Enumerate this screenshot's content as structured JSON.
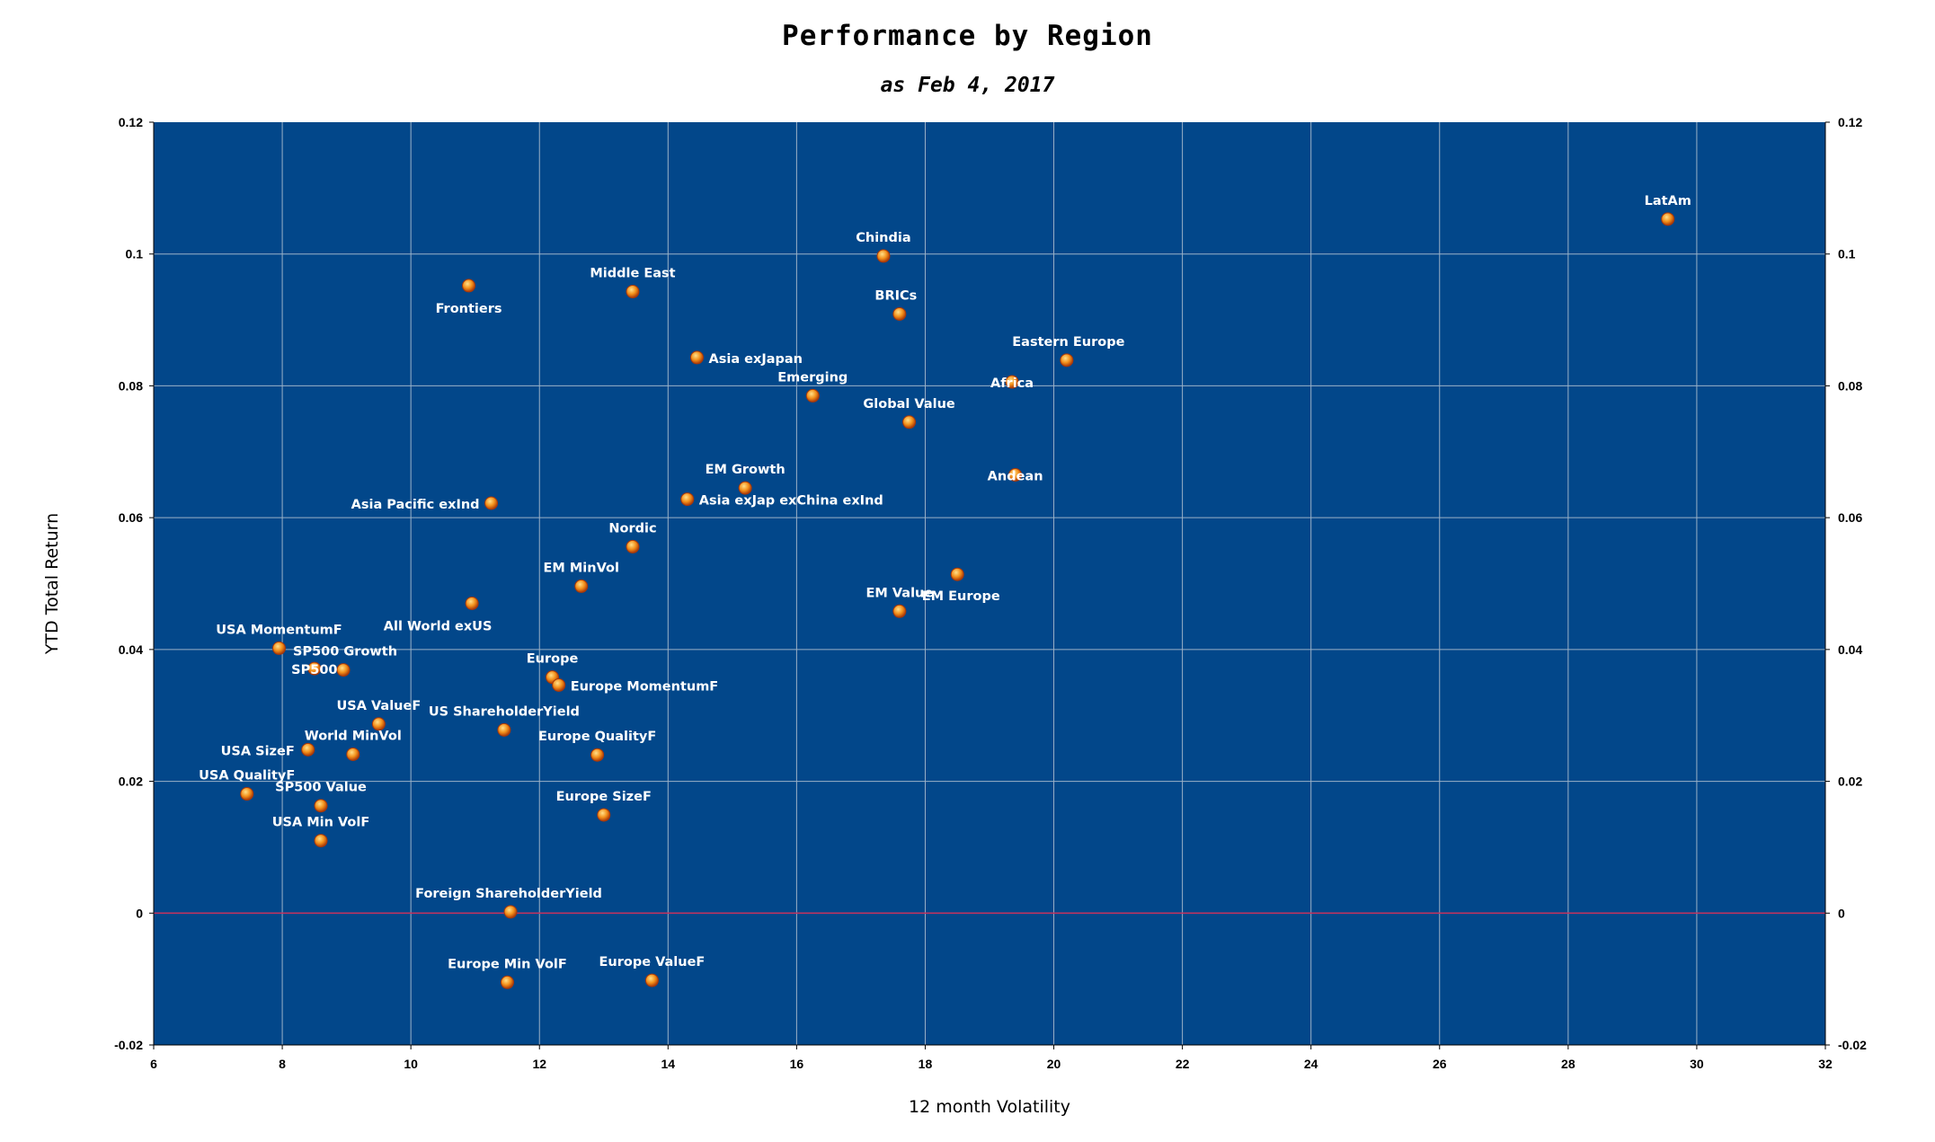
{
  "chart_data": {
    "type": "scatter",
    "title": "Performance by Region",
    "subtitle": "as Feb 4, 2017",
    "xlabel": "12 month Volatility",
    "ylabel": "YTD Total Return",
    "xlim": [
      6,
      32
    ],
    "ylim": [
      -0.02,
      0.12
    ],
    "x_ticks": [
      "6",
      "8",
      "10",
      "12",
      "14",
      "16",
      "18",
      "20",
      "22",
      "24",
      "26",
      "28",
      "30",
      "32"
    ],
    "y_ticks": [
      "-0.02",
      "0",
      "0.02",
      "0.04",
      "0.06",
      "0.08",
      "0.1",
      "0.12"
    ],
    "grid": true,
    "secondary_y_axis": true,
    "colors": {
      "plot_background": "#02478a",
      "gridline": "#9cb1c7",
      "zero_line": "#c0335f",
      "marker_fill": "#f3901a",
      "marker_highlight": "#ffe08a",
      "marker_edge": "#a8380a",
      "label": "#ffffff"
    },
    "points": [
      {
        "label": "LatAm",
        "x": 29.55,
        "y": 0.1053
      },
      {
        "label": "Chindia",
        "x": 17.35,
        "y": 0.0997
      },
      {
        "label": "Frontiers",
        "x": 10.9,
        "y": 0.0952
      },
      {
        "label": "Middle East",
        "x": 13.45,
        "y": 0.0943
      },
      {
        "label": "BRICs",
        "x": 17.6,
        "y": 0.0909
      },
      {
        "label": "Eastern Europe",
        "x": 20.2,
        "y": 0.0839
      },
      {
        "label": "Asia exJapan",
        "x": 14.45,
        "y": 0.0843
      },
      {
        "label": "Africa",
        "x": 19.35,
        "y": 0.0806
      },
      {
        "label": "Emerging",
        "x": 16.25,
        "y": 0.0785
      },
      {
        "label": "Global Value",
        "x": 17.75,
        "y": 0.0745
      },
      {
        "label": "Andean",
        "x": 19.4,
        "y": 0.0665
      },
      {
        "label": "EM Growth",
        "x": 15.2,
        "y": 0.0645
      },
      {
        "label": "Asia exJap exChina exInd",
        "x": 14.3,
        "y": 0.0628
      },
      {
        "label": "Asia Pacific exInd",
        "x": 11.25,
        "y": 0.0622
      },
      {
        "label": "Nordic",
        "x": 13.45,
        "y": 0.0556
      },
      {
        "label": "EM Europe",
        "x": 18.5,
        "y": 0.0514
      },
      {
        "label": "EM MinVol",
        "x": 12.65,
        "y": 0.0496
      },
      {
        "label": "All World exUS",
        "x": 10.95,
        "y": 0.047
      },
      {
        "label": "EM Value",
        "x": 17.6,
        "y": 0.0458
      },
      {
        "label": "USA MomentumF",
        "x": 7.95,
        "y": 0.0402
      },
      {
        "label": "SP500",
        "x": 8.5,
        "y": 0.0371
      },
      {
        "label": "SP500 Growth",
        "x": 8.95,
        "y": 0.0369
      },
      {
        "label": "Europe",
        "x": 12.2,
        "y": 0.0358
      },
      {
        "label": "Europe MomentumF",
        "x": 12.3,
        "y": 0.0346
      },
      {
        "label": "USA ValueF",
        "x": 9.5,
        "y": 0.0287
      },
      {
        "label": "US ShareholderYield",
        "x": 11.45,
        "y": 0.0278
      },
      {
        "label": "USA SizeF",
        "x": 8.4,
        "y": 0.0248
      },
      {
        "label": "World MinVol",
        "x": 9.1,
        "y": 0.0241
      },
      {
        "label": "Europe QualityF",
        "x": 12.9,
        "y": 0.024
      },
      {
        "label": "USA QualityF",
        "x": 7.45,
        "y": 0.0181
      },
      {
        "label": "SP500 Value",
        "x": 8.6,
        "y": 0.0163
      },
      {
        "label": "Europe SizeF",
        "x": 13.0,
        "y": 0.0149
      },
      {
        "label": "USA Min VolF",
        "x": 8.6,
        "y": 0.011
      },
      {
        "label": "Foreign ShareholderYield",
        "x": 11.55,
        "y": 0.0002
      },
      {
        "label": "Europe ValueF",
        "x": 13.75,
        "y": -0.0102
      },
      {
        "label": "Europe Min VolF",
        "x": 11.5,
        "y": -0.0105
      }
    ]
  }
}
